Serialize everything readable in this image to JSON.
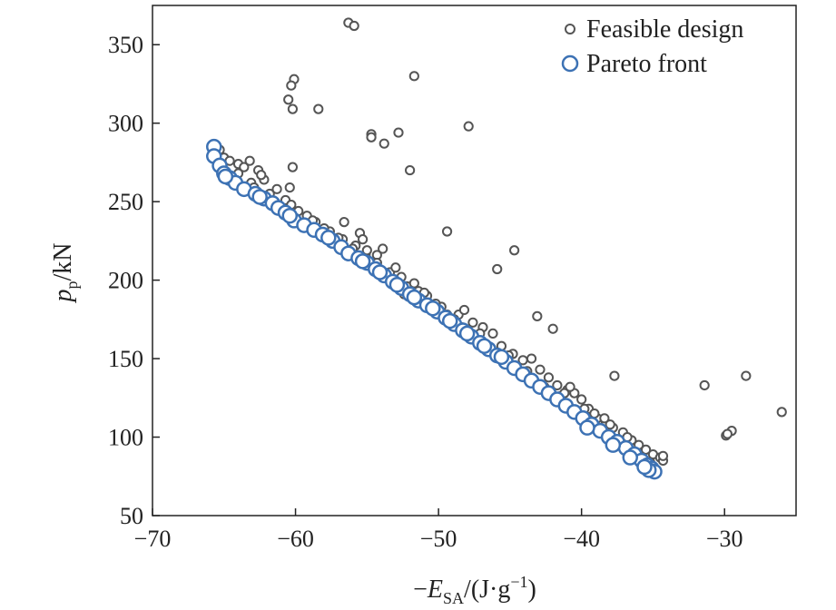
{
  "chart_data": {
    "type": "scatter",
    "title": "",
    "xlim": [
      -70,
      -25
    ],
    "ylim": [
      50,
      375
    ],
    "xticks": [
      -70,
      -60,
      -50,
      -40,
      -30
    ],
    "yticks": [
      50,
      100,
      150,
      200,
      250,
      300,
      350
    ],
    "xtick_labels": [
      "−70",
      "−60",
      "−50",
      "−40",
      "−30"
    ],
    "ytick_labels": [
      "50",
      "100",
      "150",
      "200",
      "250",
      "300",
      "350"
    ],
    "xlabel": {
      "prefix": "−",
      "symbol": "E",
      "subscript": "SA",
      "unit": "/(J·g",
      "exponent": "−1",
      "close": ")"
    },
    "ylabel": {
      "symbol": "p",
      "subscript": "p",
      "unit": "/kN"
    },
    "legend_position": "top-right",
    "colors": {
      "feasible": "#555555",
      "pareto": "#3d72b4",
      "axis": "#222222"
    },
    "series": [
      {
        "name": "Feasible design",
        "marker": "small-open-circle",
        "points": [
          [
            -56.3,
            364
          ],
          [
            -55.9,
            362
          ],
          [
            -60.1,
            328
          ],
          [
            -60.3,
            324
          ],
          [
            -60.5,
            315
          ],
          [
            -60.2,
            309
          ],
          [
            -58.4,
            309
          ],
          [
            -51.7,
            330
          ],
          [
            -54.7,
            293
          ],
          [
            -54.7,
            291
          ],
          [
            -53.8,
            287
          ],
          [
            -52.8,
            294
          ],
          [
            -47.9,
            298
          ],
          [
            -52.0,
            270
          ],
          [
            -60.2,
            272
          ],
          [
            -60.4,
            259
          ],
          [
            -56.6,
            237
          ],
          [
            -49.4,
            231
          ],
          [
            -55.5,
            230
          ],
          [
            -55.3,
            226
          ],
          [
            -53.9,
            220
          ],
          [
            -54.3,
            216
          ],
          [
            -44.7,
            219
          ],
          [
            -45.9,
            207
          ],
          [
            -42.0,
            169
          ],
          [
            -43.1,
            177
          ],
          [
            -37.7,
            139
          ],
          [
            -31.4,
            133
          ],
          [
            -28.5,
            139
          ],
          [
            -26.0,
            116
          ],
          [
            -29.9,
            101
          ],
          [
            -29.5,
            104
          ],
          [
            -29.8,
            102
          ],
          [
            -65.8,
            282
          ],
          [
            -65.3,
            283
          ],
          [
            -65.0,
            278
          ],
          [
            -64.6,
            276
          ],
          [
            -64.0,
            274
          ],
          [
            -63.6,
            272
          ],
          [
            -63.2,
            276
          ],
          [
            -62.6,
            270
          ],
          [
            -62.2,
            264
          ],
          [
            -62.4,
            267
          ],
          [
            -61.3,
            258
          ],
          [
            -60.7,
            251
          ],
          [
            -60.3,
            248
          ],
          [
            -59.2,
            241
          ],
          [
            -58.6,
            237
          ],
          [
            -57.6,
            231
          ],
          [
            -56.7,
            226
          ],
          [
            -55.8,
            222
          ],
          [
            -55.1,
            216
          ],
          [
            -54.3,
            211
          ],
          [
            -53.4,
            205
          ],
          [
            -52.6,
            202
          ],
          [
            -52.2,
            196
          ],
          [
            -51.7,
            198
          ],
          [
            -51.4,
            193
          ],
          [
            -50.8,
            190
          ],
          [
            -49.8,
            183
          ],
          [
            -49.4,
            178
          ],
          [
            -48.6,
            178
          ],
          [
            -48.2,
            181
          ],
          [
            -47.6,
            173
          ],
          [
            -46.9,
            170
          ],
          [
            -46.2,
            166
          ],
          [
            -45.6,
            158
          ],
          [
            -44.8,
            153
          ],
          [
            -44.1,
            149
          ],
          [
            -43.5,
            150
          ],
          [
            -42.9,
            143
          ],
          [
            -42.3,
            138
          ],
          [
            -41.7,
            133
          ],
          [
            -41.0,
            130
          ],
          [
            -40.5,
            128
          ],
          [
            -40.0,
            124
          ],
          [
            -39.5,
            118
          ],
          [
            -38.9,
            112
          ],
          [
            -38.3,
            109
          ],
          [
            -37.8,
            106
          ],
          [
            -37.1,
            103
          ],
          [
            -36.5,
            98
          ],
          [
            -36.0,
            95
          ],
          [
            -35.5,
            92
          ],
          [
            -35.0,
            89
          ],
          [
            -34.5,
            87
          ],
          [
            -34.3,
            85
          ],
          [
            -64.0,
            268
          ],
          [
            -63.1,
            262
          ],
          [
            -61.8,
            255
          ],
          [
            -59.8,
            244
          ],
          [
            -58.0,
            233
          ],
          [
            -57.0,
            227
          ],
          [
            -55.0,
            219
          ],
          [
            -53.0,
            208
          ],
          [
            -51.0,
            192
          ],
          [
            -50.2,
            185
          ],
          [
            -48.9,
            175
          ],
          [
            -47.1,
            166
          ],
          [
            -45.1,
            152
          ],
          [
            -43.8,
            142
          ],
          [
            -41.5,
            126
          ],
          [
            -39.1,
            115
          ],
          [
            -38.4,
            112
          ],
          [
            -36.8,
            100
          ],
          [
            -34.3,
            88
          ],
          [
            -35.2,
            84
          ],
          [
            -42.6,
            132
          ],
          [
            -44.3,
            140
          ],
          [
            -46.6,
            157
          ],
          [
            -48.4,
            170
          ],
          [
            -52.4,
            191
          ],
          [
            -56.0,
            220
          ],
          [
            -58.8,
            238
          ],
          [
            -62.9,
            259
          ],
          [
            -40.8,
            132
          ],
          [
            -41.2,
            128
          ],
          [
            -39.8,
            118
          ],
          [
            -38.0,
            108
          ]
        ]
      },
      {
        "name": "Pareto front",
        "marker": "large-open-circle",
        "points": [
          [
            -65.7,
            285
          ],
          [
            -65.7,
            279
          ],
          [
            -65.3,
            273
          ],
          [
            -65.0,
            268
          ],
          [
            -64.6,
            265
          ],
          [
            -64.2,
            262
          ],
          [
            -63.6,
            258
          ],
          [
            -62.8,
            255
          ],
          [
            -62.2,
            252
          ],
          [
            -61.6,
            249
          ],
          [
            -61.2,
            246
          ],
          [
            -60.7,
            243
          ],
          [
            -60.1,
            238
          ],
          [
            -59.4,
            235
          ],
          [
            -58.7,
            232
          ],
          [
            -58.1,
            229
          ],
          [
            -57.4,
            225
          ],
          [
            -56.8,
            221
          ],
          [
            -56.3,
            217
          ],
          [
            -55.6,
            214
          ],
          [
            -55.0,
            211
          ],
          [
            -54.4,
            207
          ],
          [
            -53.8,
            203
          ],
          [
            -53.2,
            199
          ],
          [
            -52.6,
            195
          ],
          [
            -52.0,
            191
          ],
          [
            -51.4,
            187
          ],
          [
            -50.8,
            184
          ],
          [
            -50.1,
            180
          ],
          [
            -49.5,
            176
          ],
          [
            -48.9,
            172
          ],
          [
            -48.3,
            168
          ],
          [
            -47.7,
            164
          ],
          [
            -47.1,
            160
          ],
          [
            -46.5,
            156
          ],
          [
            -45.9,
            152
          ],
          [
            -45.3,
            148
          ],
          [
            -44.7,
            144
          ],
          [
            -44.1,
            140
          ],
          [
            -43.5,
            136
          ],
          [
            -42.9,
            132
          ],
          [
            -42.3,
            128
          ],
          [
            -41.7,
            124
          ],
          [
            -41.1,
            120
          ],
          [
            -40.5,
            116
          ],
          [
            -39.9,
            112
          ],
          [
            -39.3,
            108
          ],
          [
            -38.7,
            104
          ],
          [
            -38.1,
            100
          ],
          [
            -37.5,
            97
          ],
          [
            -36.9,
            93
          ],
          [
            -36.3,
            89
          ],
          [
            -35.8,
            85
          ],
          [
            -35.4,
            82
          ],
          [
            -35.1,
            80
          ],
          [
            -34.9,
            78
          ],
          [
            -35.3,
            79
          ],
          [
            -35.6,
            81
          ],
          [
            -36.6,
            87
          ],
          [
            -37.8,
            95
          ],
          [
            -39.6,
            106
          ],
          [
            -45.6,
            151
          ],
          [
            -46.8,
            158
          ],
          [
            -48.0,
            166
          ],
          [
            -49.2,
            174
          ],
          [
            -50.4,
            182
          ],
          [
            -51.7,
            189
          ],
          [
            -52.9,
            197
          ],
          [
            -54.1,
            205
          ],
          [
            -55.3,
            212
          ],
          [
            -57.7,
            227
          ],
          [
            -60.4,
            241
          ],
          [
            -62.5,
            253
          ],
          [
            -64.9,
            266
          ]
        ]
      }
    ]
  }
}
